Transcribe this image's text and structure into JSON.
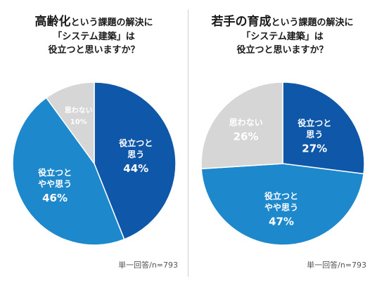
{
  "charts": [
    {
      "title_highlight": "高齢化",
      "title_rest": "という課題の解決に",
      "title_line2": "「システム建築」は",
      "title_line3": "役立つと思いますか？",
      "note": "単一回答/n=793"
    },
    {
      "title_highlight": "若手の育成",
      "title_rest": "という課題の解決に",
      "title_line2": "「システム建築」は",
      "title_line3": "役立つと思いますか？",
      "note": "単一回答/n=793"
    }
  ],
  "colors": {
    "dark_blue": "#0f57a8",
    "light_blue": "#1e88cc",
    "gray": "#d6d6d6",
    "label_on_gray": "#ffffff"
  },
  "chart_data": [
    {
      "type": "pie",
      "title": "高齢化という課題の解決に「システム建築」は役立つと思いますか？",
      "slices": [
        {
          "label_lines": [
            "役立つと",
            "思う"
          ],
          "value": 44,
          "value_label": "44%",
          "color": "#0f57a8"
        },
        {
          "label_lines": [
            "役立つと",
            "やや思う"
          ],
          "value": 46,
          "value_label": "46%",
          "color": "#1e88cc"
        },
        {
          "label_lines": [
            "思わない"
          ],
          "value": 10,
          "value_label": "10%",
          "color": "#d6d6d6"
        }
      ]
    },
    {
      "type": "pie",
      "title": "若手の育成という課題の解決に「システム建築」は役立つと思いますか？",
      "slices": [
        {
          "label_lines": [
            "役立つと",
            "思う"
          ],
          "value": 27,
          "value_label": "27%",
          "color": "#0f57a8"
        },
        {
          "label_lines": [
            "役立つと",
            "やや思う"
          ],
          "value": 47,
          "value_label": "47%",
          "color": "#1e88cc"
        },
        {
          "label_lines": [
            "思わない"
          ],
          "value": 26,
          "value_label": "26%",
          "color": "#d6d6d6"
        }
      ]
    }
  ]
}
